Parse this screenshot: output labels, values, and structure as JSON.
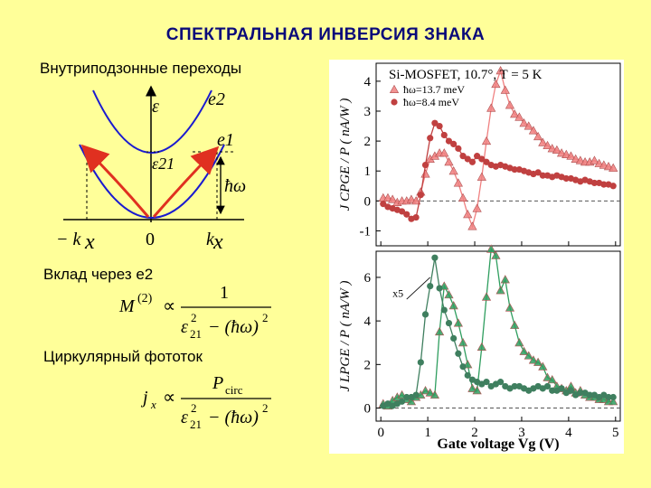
{
  "title": "СПЕКТРАЛЬНАЯ ИНВЕРСИЯ ЗНАКА",
  "left": {
    "transitions_label": "Внутриподзонные переходы",
    "e2_contribution_label": "Вклад через e2",
    "circular_photocurrent_label": "Циркулярный фототок",
    "diagram": {
      "eps": "ε",
      "e2": "e2",
      "e1": "e1",
      "eps21": "ε21",
      "hw": "ħω",
      "minus_kx": "− k",
      "zero": "0",
      "kx": "k",
      "x_letter": "x"
    },
    "formula1": {
      "lhs": "M",
      "sup": "(2)",
      "prop": "∝",
      "num": "1",
      "den_eps": "ε",
      "den_sub": "21",
      "den_sup": "2",
      "den_rest": "− (ħω)",
      "den_rest_sup": "2"
    },
    "formula2": {
      "lhs": "j",
      "lhs_sub": "x",
      "prop": "∝",
      "num": "P",
      "num_sub": "circ",
      "den_eps": "ε",
      "den_sub": "21",
      "den_sup": "2",
      "den_rest": "− (ħω)",
      "den_rest_sup": "2"
    }
  },
  "chart_data": [
    {
      "type": "scatter",
      "title": "Si-MOSFET, 10.7°, T = 5 K",
      "ylabel": "J CPGE / P  ( nA/W )",
      "ylim": [
        -1.5,
        4.6
      ],
      "yticks": [
        -1,
        0,
        1,
        2,
        3,
        4
      ],
      "xlim": [
        -0.1,
        5.1
      ],
      "legend": "top-left",
      "series": [
        {
          "name": "ħω=13.7 meV",
          "color": "#f08080",
          "marker": "triangle",
          "x": [
            0.05,
            0.15,
            0.25,
            0.35,
            0.45,
            0.55,
            0.65,
            0.75,
            0.85,
            0.95,
            1.05,
            1.15,
            1.25,
            1.35,
            1.45,
            1.55,
            1.65,
            1.75,
            1.85,
            1.95,
            2.05,
            2.15,
            2.25,
            2.35,
            2.45,
            2.55,
            2.65,
            2.75,
            2.85,
            2.95,
            3.05,
            3.15,
            3.25,
            3.35,
            3.45,
            3.55,
            3.65,
            3.75,
            3.85,
            3.95,
            4.05,
            4.15,
            4.25,
            4.35,
            4.45,
            4.55,
            4.65,
            4.75,
            4.85,
            4.95
          ],
          "y": [
            0.1,
            0.1,
            0.05,
            -0.05,
            0.0,
            0.0,
            0.05,
            0.0,
            0.3,
            0.9,
            1.4,
            1.5,
            1.6,
            1.6,
            1.3,
            1.0,
            0.6,
            0.1,
            -0.45,
            -0.85,
            -0.25,
            0.8,
            2.0,
            3.1,
            3.9,
            4.35,
            3.7,
            3.2,
            2.9,
            2.8,
            2.6,
            2.5,
            2.35,
            2.15,
            1.95,
            1.85,
            1.75,
            1.7,
            1.6,
            1.55,
            1.5,
            1.4,
            1.35,
            1.3,
            1.3,
            1.35,
            1.25,
            1.2,
            1.15,
            1.1
          ]
        },
        {
          "name": "ħω=8.4 meV",
          "color": "#c04040",
          "marker": "circle",
          "x": [
            0.05,
            0.15,
            0.25,
            0.35,
            0.45,
            0.55,
            0.65,
            0.75,
            0.85,
            0.95,
            1.05,
            1.15,
            1.25,
            1.35,
            1.45,
            1.55,
            1.65,
            1.75,
            1.85,
            1.95,
            2.05,
            2.15,
            2.25,
            2.35,
            2.45,
            2.55,
            2.65,
            2.75,
            2.85,
            2.95,
            3.05,
            3.15,
            3.25,
            3.35,
            3.45,
            3.55,
            3.65,
            3.75,
            3.85,
            3.95,
            4.05,
            4.15,
            4.25,
            4.35,
            4.45,
            4.55,
            4.65,
            4.75,
            4.85,
            4.95
          ],
          "y": [
            -0.1,
            -0.2,
            -0.25,
            -0.3,
            -0.35,
            -0.45,
            -0.6,
            -0.55,
            0.2,
            1.2,
            2.1,
            2.6,
            2.5,
            2.2,
            2.0,
            1.9,
            1.75,
            1.5,
            1.4,
            1.3,
            1.5,
            1.4,
            1.3,
            1.2,
            1.15,
            1.2,
            1.15,
            1.1,
            1.05,
            1.05,
            1.0,
            0.95,
            0.9,
            0.95,
            0.85,
            0.85,
            0.8,
            0.85,
            0.8,
            0.75,
            0.75,
            0.7,
            0.65,
            0.7,
            0.65,
            0.6,
            0.6,
            0.55,
            0.55,
            0.5
          ]
        }
      ]
    },
    {
      "type": "scatter",
      "xlabel": "Gate voltage Vg  (V)",
      "ylabel": "J LPGE / P  ( nA/W )",
      "ylim": [
        -0.6,
        7.2
      ],
      "yticks": [
        0,
        2,
        4,
        6
      ],
      "xlim": [
        -0.1,
        5.1
      ],
      "xticks": [
        0,
        1,
        2,
        3,
        4,
        5
      ],
      "annotation": "x5",
      "series": [
        {
          "name": "ħω=13.7 meV",
          "color": "#2f9e5f",
          "marker": "triangle",
          "x": [
            0.05,
            0.15,
            0.25,
            0.35,
            0.45,
            0.55,
            0.65,
            0.75,
            0.85,
            0.95,
            1.05,
            1.15,
            1.25,
            1.35,
            1.45,
            1.55,
            1.65,
            1.75,
            1.85,
            1.95,
            2.05,
            2.15,
            2.25,
            2.35,
            2.45,
            2.55,
            2.65,
            2.75,
            2.85,
            2.95,
            3.05,
            3.15,
            3.25,
            3.35,
            3.45,
            3.55,
            3.65,
            3.75,
            3.85,
            3.95,
            4.05,
            4.15,
            4.25,
            4.35,
            4.45,
            4.55,
            4.65,
            4.75,
            4.85,
            4.95
          ],
          "y": [
            0.2,
            0.1,
            0.35,
            0.5,
            0.6,
            0.4,
            0.3,
            0.5,
            0.6,
            0.8,
            0.7,
            0.6,
            3.5,
            5.6,
            5.2,
            4.7,
            3.9,
            3.0,
            2.0,
            0.9,
            0.8,
            2.8,
            5.1,
            7.3,
            7.0,
            5.4,
            5.9,
            4.6,
            3.8,
            3.0,
            2.6,
            2.4,
            2.2,
            2.1,
            1.9,
            1.4,
            1.3,
            1.0,
            0.9,
            0.8,
            1.0,
            0.7,
            0.8,
            0.6,
            0.5,
            0.5,
            0.4,
            0.4,
            0.3,
            0.3
          ]
        },
        {
          "name": "ħω=8.4 meV",
          "color": "#3f7f5f",
          "marker": "circle",
          "x": [
            0.05,
            0.15,
            0.25,
            0.35,
            0.45,
            0.55,
            0.65,
            0.75,
            0.85,
            0.95,
            1.05,
            1.15,
            1.25,
            1.35,
            1.45,
            1.55,
            1.65,
            1.75,
            1.85,
            1.95,
            2.05,
            2.15,
            2.25,
            2.35,
            2.45,
            2.55,
            2.65,
            2.75,
            2.85,
            2.95,
            3.05,
            3.15,
            3.25,
            3.35,
            3.45,
            3.55,
            3.65,
            3.75,
            3.85,
            3.95,
            4.05,
            4.15,
            4.25,
            4.35,
            4.45,
            4.55,
            4.65,
            4.75,
            4.85,
            4.95
          ],
          "y": [
            0.1,
            0.2,
            0.1,
            0.2,
            0.3,
            0.5,
            0.5,
            0.6,
            2.1,
            4.3,
            5.6,
            6.9,
            5.5,
            4.5,
            3.9,
            3.2,
            2.5,
            1.9,
            1.5,
            1.3,
            1.2,
            1.1,
            1.2,
            1.0,
            1.1,
            1.2,
            1.0,
            0.9,
            1.0,
            1.0,
            0.9,
            0.8,
            0.9,
            1.0,
            0.9,
            1.0,
            0.8,
            0.8,
            0.9,
            0.7,
            0.8,
            0.6,
            0.7,
            0.7,
            0.6,
            0.6,
            0.5,
            0.6,
            0.5,
            0.5
          ]
        }
      ]
    }
  ]
}
